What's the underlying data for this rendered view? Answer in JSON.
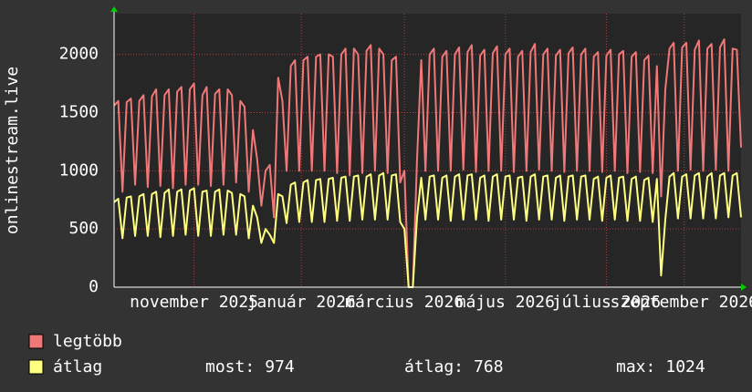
{
  "chart_data": {
    "type": "line",
    "y_label": "onlinestream.live",
    "ylim": [
      0,
      2350
    ],
    "yticks": [
      0,
      500,
      1000,
      1500,
      2000
    ],
    "xlim": [
      0,
      149
    ],
    "xticks": [
      {
        "value": 19,
        "label": "november 2025"
      },
      {
        "value": 44.5,
        "label": "január 2026"
      },
      {
        "value": 69,
        "label": "március 2026"
      },
      {
        "value": 93,
        "label": "május 2026"
      },
      {
        "value": 117,
        "label": "július 2026"
      },
      {
        "value": 135.5,
        "label": "szeptember 2026"
      }
    ],
    "grid": true,
    "series": [
      {
        "name": "legtöbb",
        "color": "#f07878",
        "values": [
          1560,
          1600,
          820,
          1590,
          1620,
          880,
          1600,
          1650,
          860,
          1640,
          1700,
          870,
          1650,
          1700,
          850,
          1680,
          1720,
          880,
          1700,
          1750,
          880,
          1650,
          1720,
          870,
          1660,
          1700,
          880,
          1700,
          1650,
          900,
          1600,
          1550,
          820,
          1350,
          1100,
          700,
          1000,
          1050,
          600,
          1800,
          1600,
          1000,
          1900,
          1950,
          1000,
          1950,
          1980,
          1000,
          1980,
          2000,
          1000,
          2000,
          1980,
          980,
          2000,
          2050,
          960,
          2050,
          2000,
          980,
          2030,
          2080,
          1000,
          2050,
          2000,
          980,
          1950,
          1980,
          900,
          1000,
          0,
          0,
          1100,
          1950,
          1000,
          2000,
          2050,
          1000,
          1980,
          2030,
          1000,
          2000,
          2060,
          1010,
          2020,
          2080,
          990,
          1990,
          2040,
          1000,
          2010,
          2070,
          1000,
          2000,
          2050,
          990,
          1980,
          2030,
          1000,
          2020,
          2090,
          1010,
          2000,
          2050,
          1000,
          1990,
          2040,
          990,
          2010,
          2060,
          1000,
          2000,
          2050,
          1000,
          1980,
          2020,
          990,
          1990,
          2040,
          1000,
          2000,
          2030,
          980,
          1980,
          2020,
          990,
          1950,
          1990,
          980,
          1900,
          780,
          1700,
          2050,
          2100,
          1000,
          2060,
          2100,
          1010,
          2040,
          2120,
          1000,
          2050,
          2090,
          1010,
          2060,
          2130,
          1000,
          2050,
          2040,
          1200
        ]
      },
      {
        "name": "átlag",
        "color": "#ffff80",
        "values": [
          730,
          760,
          420,
          770,
          780,
          440,
          780,
          800,
          440,
          800,
          820,
          430,
          810,
          840,
          440,
          820,
          840,
          450,
          830,
          850,
          440,
          820,
          830,
          440,
          820,
          840,
          450,
          830,
          810,
          450,
          800,
          780,
          420,
          700,
          600,
          380,
          500,
          450,
          380,
          800,
          780,
          550,
          880,
          900,
          560,
          900,
          920,
          560,
          920,
          930,
          560,
          930,
          940,
          570,
          940,
          950,
          570,
          950,
          960,
          580,
          950,
          970,
          580,
          960,
          980,
          580,
          960,
          970,
          560,
          500,
          0,
          0,
          600,
          940,
          580,
          950,
          960,
          580,
          940,
          960,
          570,
          950,
          970,
          580,
          960,
          970,
          580,
          940,
          960,
          570,
          950,
          970,
          580,
          950,
          960,
          580,
          940,
          950,
          570,
          950,
          970,
          580,
          950,
          960,
          580,
          940,
          960,
          570,
          950,
          960,
          580,
          950,
          960,
          580,
          930,
          950,
          570,
          940,
          960,
          580,
          940,
          950,
          570,
          930,
          950,
          570,
          920,
          940,
          560,
          930,
          100,
          580,
          950,
          980,
          590,
          950,
          970,
          590,
          960,
          980,
          590,
          950,
          980,
          590,
          960,
          980,
          600,
          960,
          980,
          600
        ]
      }
    ],
    "stats": [
      {
        "label": "most:",
        "value": 974
      },
      {
        "label": "átlag:",
        "value": 768
      },
      {
        "label": "max:",
        "value": 1024
      }
    ]
  }
}
